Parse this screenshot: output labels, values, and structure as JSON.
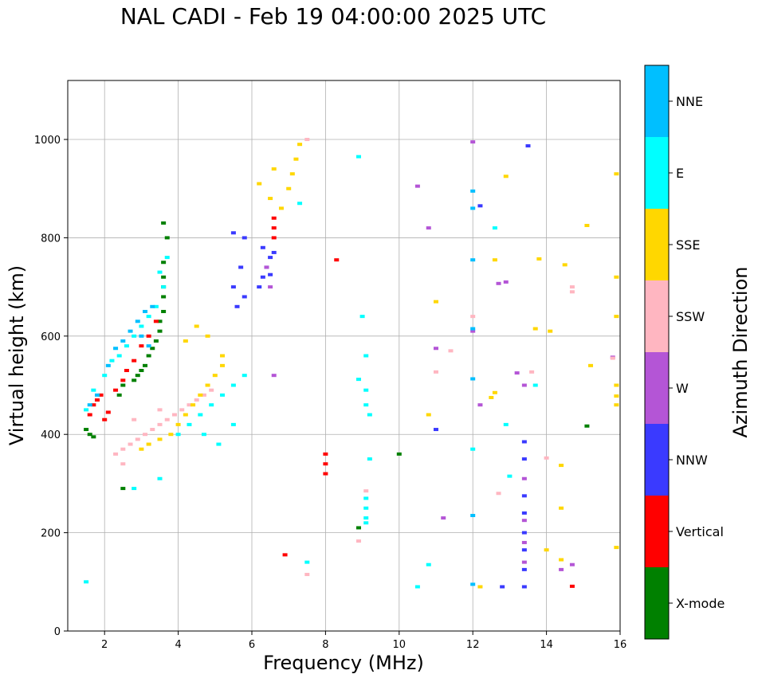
{
  "chart_data": {
    "type": "scatter",
    "title": "NAL CADI - Feb 19 04:00:00 2025 UTC",
    "xlabel": "Frequency (MHz)",
    "ylabel": "Virtual height (km)",
    "xlim": [
      1,
      16
    ],
    "ylim": [
      0,
      1120
    ],
    "xticks": [
      "2",
      "4",
      "6",
      "8",
      "10",
      "12",
      "14",
      "16"
    ],
    "yticks": [
      "0",
      "200",
      "400",
      "600",
      "800",
      "1000"
    ],
    "grid": true,
    "colorbar": {
      "label": "Azimuth Direction",
      "categories": [
        {
          "name": "X-mode",
          "color": "#008000"
        },
        {
          "name": "Vertical",
          "color": "#ff0000"
        },
        {
          "name": "NNW",
          "color": "#3a3aff"
        },
        {
          "name": "W",
          "color": "#b455d6"
        },
        {
          "name": "SSW",
          "color": "#ffb6c1"
        },
        {
          "name": "SSE",
          "color": "#ffd700"
        },
        {
          "name": "E",
          "color": "#00ffff"
        },
        {
          "name": "NNE",
          "color": "#00bfff"
        }
      ]
    },
    "series": [
      {
        "name": "X-mode",
        "points": [
          [
            1.5,
            410
          ],
          [
            1.6,
            400
          ],
          [
            1.7,
            395
          ],
          [
            2.4,
            480
          ],
          [
            2.5,
            500
          ],
          [
            2.8,
            510
          ],
          [
            2.9,
            520
          ],
          [
            3.0,
            530
          ],
          [
            3.1,
            540
          ],
          [
            3.2,
            560
          ],
          [
            3.3,
            575
          ],
          [
            3.4,
            590
          ],
          [
            3.5,
            610
          ],
          [
            3.5,
            630
          ],
          [
            3.6,
            650
          ],
          [
            3.6,
            680
          ],
          [
            3.6,
            700
          ],
          [
            3.6,
            720
          ],
          [
            3.6,
            750
          ],
          [
            3.7,
            800
          ],
          [
            3.6,
            830
          ],
          [
            2.5,
            290
          ],
          [
            8.9,
            210
          ],
          [
            10.0,
            360
          ],
          [
            15.1,
            417
          ]
        ]
      },
      {
        "name": "Vertical",
        "points": [
          [
            1.6,
            440
          ],
          [
            1.7,
            460
          ],
          [
            1.8,
            470
          ],
          [
            1.9,
            480
          ],
          [
            2.0,
            430
          ],
          [
            2.1,
            445
          ],
          [
            2.3,
            490
          ],
          [
            2.5,
            510
          ],
          [
            2.6,
            530
          ],
          [
            2.8,
            550
          ],
          [
            3.0,
            580
          ],
          [
            3.2,
            600
          ],
          [
            3.4,
            630
          ],
          [
            6.6,
            800
          ],
          [
            6.6,
            820
          ],
          [
            6.6,
            840
          ],
          [
            8.3,
            755
          ],
          [
            8.0,
            360
          ],
          [
            8.0,
            340
          ],
          [
            8.0,
            320
          ],
          [
            6.9,
            155
          ],
          [
            14.7,
            91
          ]
        ]
      },
      {
        "name": "NNW",
        "points": [
          [
            6.2,
            700
          ],
          [
            6.3,
            720
          ],
          [
            6.4,
            740
          ],
          [
            6.5,
            725
          ],
          [
            6.3,
            780
          ],
          [
            6.5,
            760
          ],
          [
            5.8,
            680
          ],
          [
            5.6,
            660
          ],
          [
            5.5,
            700
          ],
          [
            5.7,
            740
          ],
          [
            5.5,
            810
          ],
          [
            5.8,
            800
          ],
          [
            6.6,
            770
          ],
          [
            12.2,
            865
          ],
          [
            13.4,
            385
          ],
          [
            13.4,
            350
          ],
          [
            13.4,
            275
          ],
          [
            13.4,
            240
          ],
          [
            13.4,
            200
          ],
          [
            13.4,
            165
          ],
          [
            13.4,
            125
          ],
          [
            13.4,
            90
          ],
          [
            12.8,
            90
          ],
          [
            13.5,
            987
          ],
          [
            11.0,
            410
          ]
        ]
      },
      {
        "name": "W",
        "points": [
          [
            6.6,
            520
          ],
          [
            6.4,
            740
          ],
          [
            6.5,
            700
          ],
          [
            12.0,
            995
          ],
          [
            12.7,
            707
          ],
          [
            12.9,
            710
          ],
          [
            13.4,
            500
          ],
          [
            13.4,
            310
          ],
          [
            13.4,
            225
          ],
          [
            13.4,
            180
          ],
          [
            13.4,
            140
          ],
          [
            11.2,
            230
          ],
          [
            10.5,
            905
          ],
          [
            10.8,
            820
          ],
          [
            11.0,
            575
          ],
          [
            12.0,
            610
          ],
          [
            12.2,
            460
          ],
          [
            13.2,
            525
          ],
          [
            14.7,
            135
          ],
          [
            14.4,
            125
          ],
          [
            15.8,
            557
          ]
        ]
      },
      {
        "name": "SSW",
        "points": [
          [
            2.3,
            360
          ],
          [
            2.5,
            370
          ],
          [
            2.7,
            380
          ],
          [
            2.9,
            390
          ],
          [
            3.1,
            400
          ],
          [
            3.3,
            410
          ],
          [
            3.5,
            420
          ],
          [
            3.7,
            430
          ],
          [
            3.9,
            440
          ],
          [
            4.1,
            450
          ],
          [
            4.3,
            460
          ],
          [
            4.5,
            470
          ],
          [
            4.7,
            480
          ],
          [
            4.9,
            490
          ],
          [
            2.5,
            340
          ],
          [
            2.8,
            430
          ],
          [
            3.5,
            450
          ],
          [
            7.5,
            1000
          ],
          [
            14.7,
            690
          ],
          [
            14.7,
            700
          ],
          [
            13.6,
            527
          ],
          [
            11.4,
            570
          ],
          [
            12.0,
            640
          ],
          [
            12.7,
            280
          ],
          [
            8.9,
            183
          ],
          [
            7.5,
            115
          ],
          [
            9.1,
            285
          ],
          [
            11.0,
            527
          ],
          [
            14.0,
            352
          ],
          [
            15.8,
            555
          ]
        ]
      },
      {
        "name": "SSE",
        "points": [
          [
            3.0,
            370
          ],
          [
            3.2,
            380
          ],
          [
            3.5,
            390
          ],
          [
            3.8,
            400
          ],
          [
            4.0,
            420
          ],
          [
            4.2,
            440
          ],
          [
            4.4,
            460
          ],
          [
            4.6,
            480
          ],
          [
            4.8,
            500
          ],
          [
            5.0,
            520
          ],
          [
            5.2,
            540
          ],
          [
            4.2,
            590
          ],
          [
            4.5,
            620
          ],
          [
            4.8,
            600
          ],
          [
            5.2,
            560
          ],
          [
            6.2,
            910
          ],
          [
            6.5,
            880
          ],
          [
            6.8,
            860
          ],
          [
            7.0,
            900
          ],
          [
            7.1,
            930
          ],
          [
            7.2,
            960
          ],
          [
            7.3,
            990
          ],
          [
            6.6,
            940
          ],
          [
            12.9,
            925
          ],
          [
            15.9,
            930
          ],
          [
            15.9,
            720
          ],
          [
            15.9,
            500
          ],
          [
            15.9,
            478
          ],
          [
            12.6,
            485
          ],
          [
            12.6,
            755
          ],
          [
            13.8,
            757
          ],
          [
            14.5,
            745
          ],
          [
            15.1,
            825
          ],
          [
            12.5,
            475
          ],
          [
            14.4,
            337
          ],
          [
            14.4,
            250
          ],
          [
            14.0,
            165
          ],
          [
            14.4,
            145
          ],
          [
            15.9,
            170
          ],
          [
            10.8,
            440
          ],
          [
            12.2,
            90
          ],
          [
            13.7,
            615
          ],
          [
            14.1,
            610
          ],
          [
            15.2,
            540
          ],
          [
            15.9,
            460
          ],
          [
            15.9,
            640
          ],
          [
            11.0,
            670
          ]
        ]
      },
      {
        "name": "E",
        "points": [
          [
            1.5,
            450
          ],
          [
            1.7,
            490
          ],
          [
            2.0,
            520
          ],
          [
            2.2,
            550
          ],
          [
            2.4,
            560
          ],
          [
            2.6,
            580
          ],
          [
            2.8,
            600
          ],
          [
            3.0,
            620
          ],
          [
            3.2,
            640
          ],
          [
            3.4,
            660
          ],
          [
            3.6,
            700
          ],
          [
            3.7,
            760
          ],
          [
            3.5,
            730
          ],
          [
            4.0,
            400
          ],
          [
            4.3,
            420
          ],
          [
            4.6,
            440
          ],
          [
            4.9,
            460
          ],
          [
            5.2,
            480
          ],
          [
            5.5,
            500
          ],
          [
            5.8,
            520
          ],
          [
            5.1,
            380
          ],
          [
            4.7,
            400
          ],
          [
            5.5,
            420
          ],
          [
            8.9,
            512
          ],
          [
            9.1,
            490
          ],
          [
            9.1,
            460
          ],
          [
            9.2,
            440
          ],
          [
            9.1,
            560
          ],
          [
            9.1,
            270
          ],
          [
            9.1,
            250
          ],
          [
            9.1,
            230
          ],
          [
            9.1,
            220
          ],
          [
            9.2,
            350
          ],
          [
            9.0,
            640
          ],
          [
            8.9,
            965
          ],
          [
            7.3,
            870
          ],
          [
            1.5,
            100
          ],
          [
            10.5,
            90
          ],
          [
            10.8,
            135
          ],
          [
            12.6,
            820
          ],
          [
            12.9,
            420
          ],
          [
            13.0,
            315
          ],
          [
            13.7,
            500
          ],
          [
            12.0,
            370
          ],
          [
            3.5,
            310
          ],
          [
            2.8,
            290
          ],
          [
            7.5,
            140
          ]
        ]
      },
      {
        "name": "NNE",
        "points": [
          [
            1.6,
            460
          ],
          [
            1.8,
            480
          ],
          [
            2.1,
            540
          ],
          [
            2.3,
            575
          ],
          [
            2.5,
            590
          ],
          [
            2.7,
            610
          ],
          [
            2.9,
            630
          ],
          [
            3.1,
            650
          ],
          [
            3.3,
            660
          ],
          [
            3.0,
            600
          ],
          [
            3.2,
            580
          ],
          [
            12.0,
            895
          ],
          [
            12.0,
            755
          ],
          [
            12.0,
            615
          ],
          [
            12.0,
            235
          ],
          [
            12.0,
            95
          ],
          [
            12.0,
            860
          ],
          [
            12.0,
            513
          ]
        ]
      }
    ]
  }
}
